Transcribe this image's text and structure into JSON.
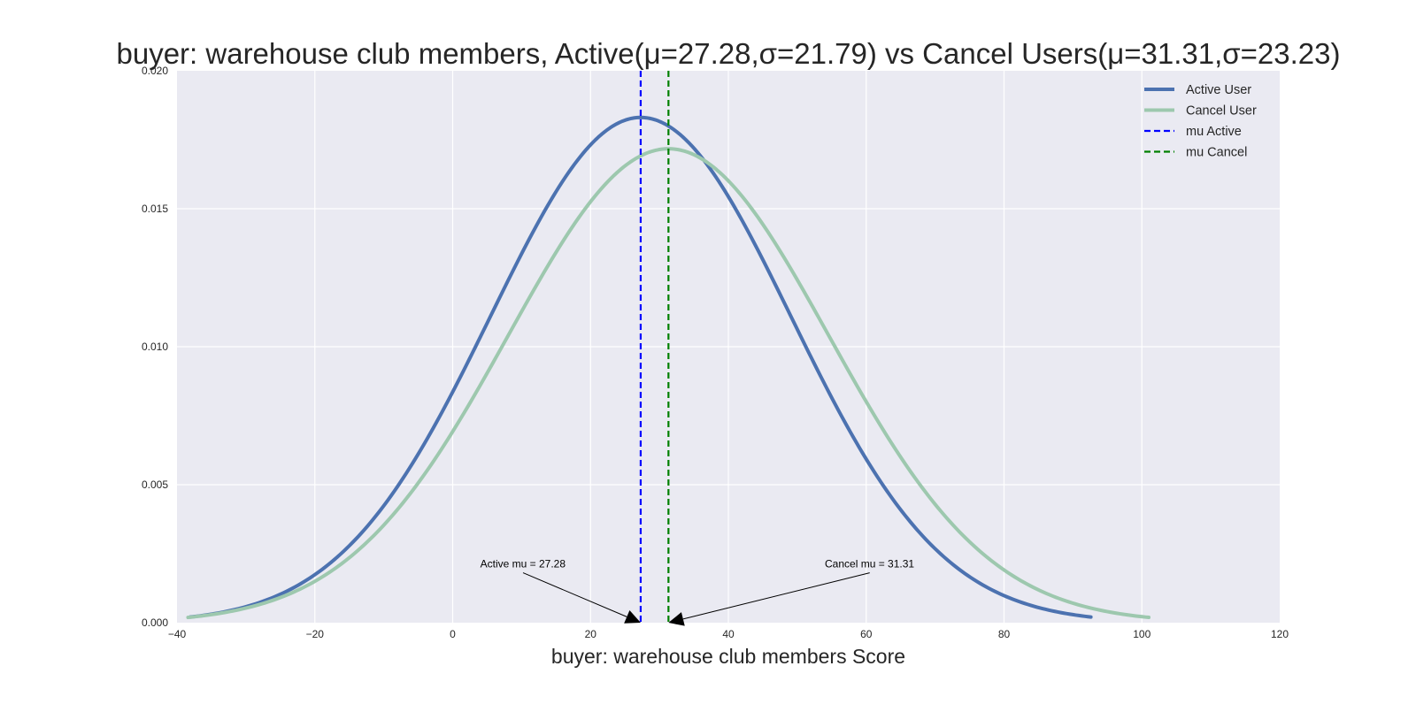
{
  "chart_data": {
    "type": "line",
    "title": "buyer: warehouse club members, Active(μ=27.28,σ=21.79) vs Cancel Users(μ=31.31,σ=23.23)",
    "xlabel": "buyer: warehouse club members Score",
    "ylabel": "",
    "xlim": [
      -40,
      120
    ],
    "ylim": [
      0,
      0.02
    ],
    "x_ticks": [
      -40,
      -20,
      0,
      20,
      40,
      60,
      80,
      100,
      120
    ],
    "x_tick_labels": [
      "−40",
      "−20",
      "0",
      "20",
      "40",
      "60",
      "80",
      "100",
      "120"
    ],
    "y_ticks": [
      0,
      0.005,
      0.01,
      0.015,
      0.02
    ],
    "y_tick_labels": [
      "0.000",
      "0.005",
      "0.010",
      "0.015",
      "0.020"
    ],
    "grid": true,
    "legend_position": "top-right",
    "series": [
      {
        "name": "Active User",
        "kind": "normal-pdf",
        "mu": 27.28,
        "sigma": 21.79,
        "x_range": [
          -38.1,
          92.6
        ],
        "color": "#4C72B0",
        "line_style": "solid"
      },
      {
        "name": "Cancel User",
        "kind": "normal-pdf",
        "mu": 31.31,
        "sigma": 23.23,
        "x_range": [
          -38.4,
          101.0
        ],
        "color": "#9DC8AE",
        "line_style": "solid"
      },
      {
        "name": "mu Active",
        "kind": "vline",
        "x": 27.28,
        "color": "#0000FF",
        "line_style": "dashed"
      },
      {
        "name": "mu Cancel",
        "kind": "vline",
        "x": 31.31,
        "color": "#008000",
        "line_style": "dashed"
      }
    ],
    "annotations": [
      {
        "text": "Active mu = 27.28",
        "text_x": 4.0,
        "text_y": 0.002,
        "target_x": 27.28,
        "target_y": 0
      },
      {
        "text": "Cancel mu = 31.31",
        "text_x": 54.0,
        "text_y": 0.002,
        "target_x": 31.31,
        "target_y": 0
      }
    ],
    "colors": {
      "plot_background": "#EAEAF2",
      "grid": "#FFFFFF"
    }
  }
}
